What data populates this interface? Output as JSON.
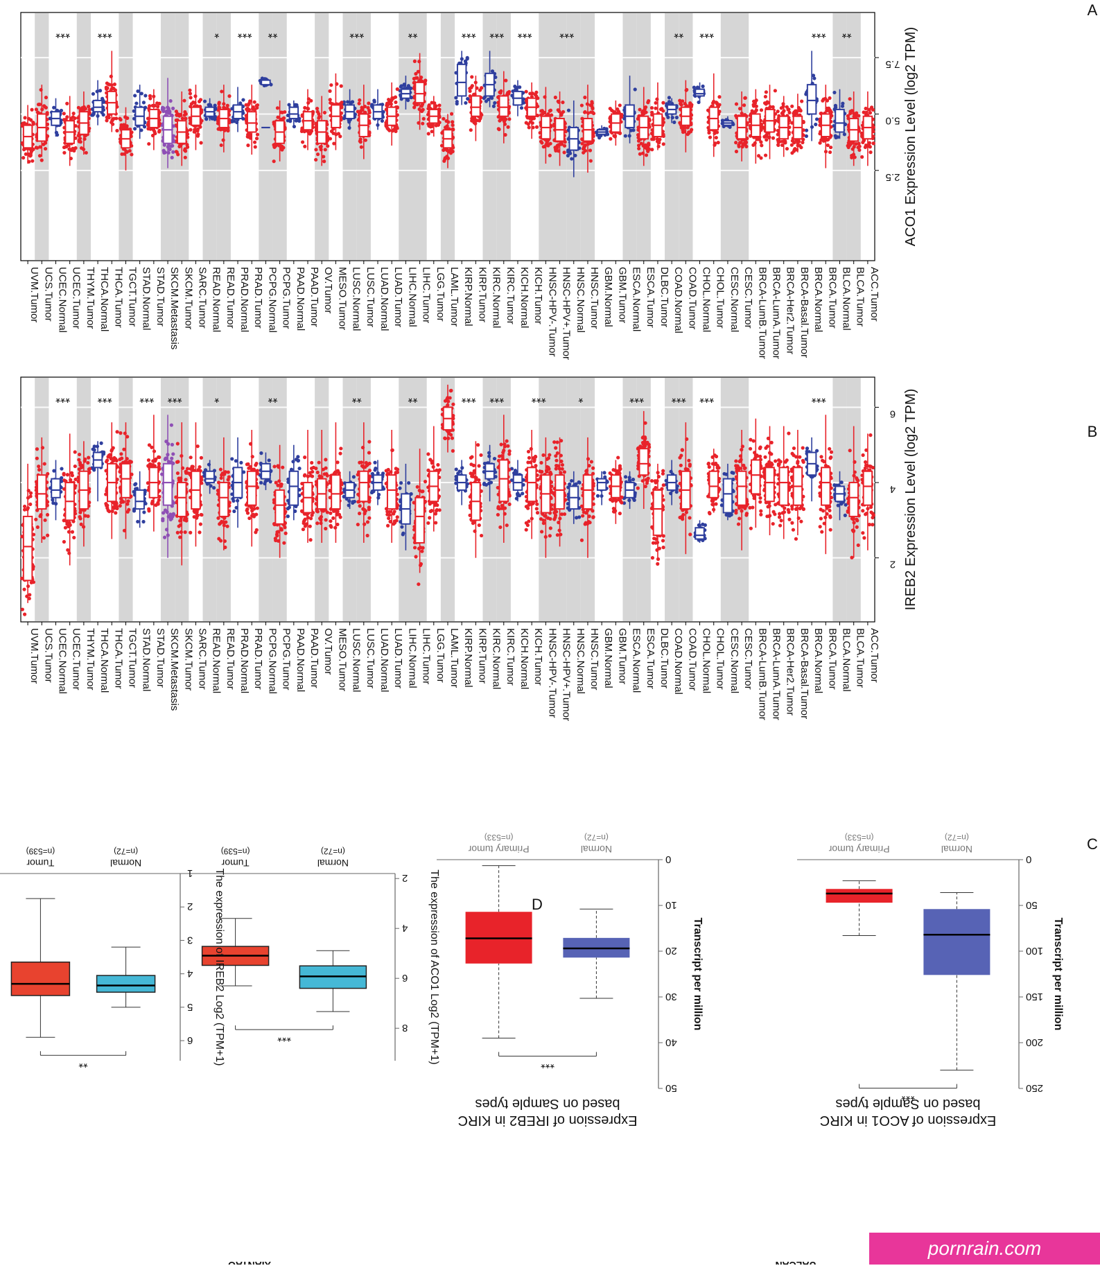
{
  "panel_labels": {
    "A": "A",
    "B": "B",
    "C": "C",
    "D": "D"
  },
  "sections": {
    "ualcan": "UALCAN",
    "xiantao": "XIANTAO"
  },
  "watermark": "pornrain.com",
  "colors": {
    "tumor": "#e8232a",
    "normal": "#2f3f9e",
    "metastasis": "#8e4fb5",
    "stripe": "#d6d6d6",
    "ualcan_normal": "#5763b5",
    "xiantao_normal": "#45b8d6",
    "xiantao_tumor": "#e8432f"
  },
  "chart_data": [
    {
      "panel": "A",
      "type": "box",
      "ylabel": "ACO1 Expression Level (log2 TPM)",
      "yticks": [
        "2.5",
        "5.0",
        "7.5"
      ],
      "ylim": [
        -1.5,
        9.5
      ],
      "categories": [
        "ACC.Tumor",
        "BLCA.Tumor",
        "BLCA.Normal",
        "BRCA.Tumor",
        "BRCA.Normal",
        "BRCA-Basal.Tumor",
        "BRCA-Her2.Tumor",
        "BRCA-LumA.Tumor",
        "BRCA-LumB.Tumor",
        "CESC.Tumor",
        "CESC.Normal",
        "CHOL.Tumor",
        "CHOL.Normal",
        "COAD.Tumor",
        "COAD.Normal",
        "DLBC.Tumor",
        "ESCA.Tumor",
        "ESCA.Normal",
        "GBM.Tumor",
        "GBM.Normal",
        "HNSC.Tumor",
        "HNSC.Normal",
        "HNSC-HPV+.Tumor",
        "HNSC-HPV-.Tumor",
        "KICH.Tumor",
        "KICH.Normal",
        "KIRC.Tumor",
        "KIRC.Normal",
        "KIRP.Tumor",
        "KIRP.Normal",
        "LAML.Tumor",
        "LGG.Tumor",
        "LIHC.Tumor",
        "LIHC.Normal",
        "LUAD.Tumor",
        "LUAD.Normal",
        "LUSC.Tumor",
        "LUSC.Normal",
        "MESO.Tumor",
        "OV.Tumor",
        "PAAD.Tumor",
        "PAAD.Normal",
        "PCPG.Tumor",
        "PCPG.Normal",
        "PRAD.Tumor",
        "PRAD.Normal",
        "READ.Tumor",
        "READ.Normal",
        "SARC.Tumor",
        "SKCM.Tumor",
        "SKCM.Metastasis",
        "STAD.Tumor",
        "STAD.Normal",
        "TGCT.Tumor",
        "THCA.Tumor",
        "THCA.Normal",
        "THYM.Tumor",
        "UCEC.Tumor",
        "UCEC.Normal",
        "UCS.Tumor",
        "UVM.Tumor"
      ],
      "median": [
        4.4,
        4.3,
        4.6,
        4.5,
        5.6,
        4.4,
        4.4,
        4.7,
        4.5,
        4.4,
        4.6,
        4.8,
        5.9,
        4.9,
        5.2,
        4.5,
        4.4,
        4.9,
        4.6,
        4.2,
        4.3,
        3.9,
        4.3,
        4.4,
        5.3,
        5.7,
        5.3,
        6.3,
        5.3,
        6.4,
        3.9,
        4.9,
        5.9,
        5.9,
        4.9,
        5.1,
        4.5,
        5.1,
        4.9,
        4.2,
        4.7,
        5.0,
        4.2,
        4.4,
        4.6,
        5.1,
        4.8,
        5.1,
        4.9,
        4.2,
        4.3,
        4.8,
        4.9,
        3.9,
        5.5,
        5.3,
        4.6,
        4.2,
        4.8,
        4.4,
        4.0
      ],
      "q1": [
        3.9,
        3.8,
        4.2,
        4.0,
        5.0,
        3.9,
        3.9,
        4.2,
        4.0,
        3.9,
        4.5,
        4.3,
        5.8,
        4.5,
        5.0,
        4.0,
        3.9,
        4.4,
        4.2,
        4.1,
        3.8,
        3.4,
        3.8,
        3.9,
        4.9,
        5.4,
        4.9,
        5.8,
        4.9,
        5.8,
        3.5,
        4.6,
        5.5,
        5.7,
        4.5,
        4.8,
        4.0,
        4.8,
        4.4,
        3.7,
        4.3,
        4.8,
        3.7,
        6.3,
        4.2,
        4.8,
        4.4,
        4.9,
        4.5,
        3.7,
        3.7,
        4.4,
        4.5,
        3.5,
        5.0,
        5.1,
        4.1,
        3.7,
        4.5,
        3.8,
        3.5
      ],
      "q3": [
        4.9,
        4.8,
        5.2,
        5.0,
        6.3,
        4.9,
        4.9,
        5.2,
        5.0,
        4.9,
        4.7,
        5.3,
        6.1,
        5.3,
        5.4,
        5.0,
        4.9,
        5.4,
        5.0,
        4.3,
        4.8,
        4.4,
        4.8,
        4.9,
        5.7,
        6.0,
        5.8,
        6.8,
        5.8,
        7.2,
        4.3,
        5.2,
        6.4,
        6.1,
        5.3,
        5.4,
        5.0,
        5.4,
        5.4,
        4.7,
        5.1,
        5.3,
        4.7,
        6.5,
        5.1,
        5.4,
        5.2,
        5.3,
        5.3,
        4.7,
        4.9,
        5.2,
        5.3,
        4.3,
        6.0,
        5.6,
        5.1,
        4.7,
        5.1,
        5.0,
        4.5
      ],
      "lower": [
        2.7,
        2.7,
        3.9,
        2.6,
        3.8,
        3.3,
        3.1,
        3.0,
        2.8,
        2.9,
        4.4,
        3.1,
        5.5,
        3.3,
        4.6,
        3.4,
        2.7,
        3.7,
        3.6,
        4.0,
        2.4,
        2.2,
        2.7,
        2.8,
        3.9,
        4.9,
        3.7,
        5.3,
        3.8,
        5.4,
        2.6,
        4.0,
        4.3,
        5.2,
        3.6,
        4.3,
        3.0,
        4.3,
        3.4,
        2.7,
        3.4,
        4.5,
        2.9,
        6.2,
        3.2,
        4.2,
        3.3,
        4.7,
        3.4,
        2.7,
        2.6,
        3.4,
        3.9,
        2.5,
        4.2,
        4.5,
        3.2,
        2.7,
        4.0,
        3.1,
        2.8
      ],
      "upper": [
        6.0,
        6.0,
        6.1,
        6.3,
        7.8,
        5.9,
        5.8,
        6.3,
        6.1,
        6.0,
        4.9,
        6.8,
        6.4,
        6.5,
        5.7,
        6.4,
        6.2,
        6.7,
        5.6,
        4.5,
        6.3,
        5.6,
        6.0,
        6.2,
        6.4,
        6.5,
        6.9,
        7.8,
        6.7,
        7.8,
        5.0,
        5.8,
        7.7,
        6.7,
        6.4,
        6.1,
        6.3,
        6.1,
        6.8,
        5.8,
        6.1,
        5.6,
        5.6,
        6.6,
        6.3,
        6.2,
        6.3,
        5.7,
        6.3,
        6.0,
        6.6,
        6.1,
        6.3,
        5.3,
        7.8,
        6.5,
        6.0,
        5.8,
        5.7,
        6.3,
        5.4
      ],
      "significance": [
        {
          "pair": [
            1,
            2
          ],
          "label": "**"
        },
        {
          "pair": [
            3,
            4
          ],
          "label": "***"
        },
        {
          "pair": [
            11,
            12
          ],
          "label": "***"
        },
        {
          "pair": [
            13,
            14
          ],
          "label": "**"
        },
        {
          "pair": [
            20,
            23
          ],
          "label": "***"
        },
        {
          "pair": [
            24,
            25
          ],
          "label": "***"
        },
        {
          "pair": [
            26,
            27
          ],
          "label": "***"
        },
        {
          "pair": [
            28,
            29
          ],
          "label": "***"
        },
        {
          "pair": [
            32,
            33
          ],
          "label": "**"
        },
        {
          "pair": [
            36,
            37
          ],
          "label": "***"
        },
        {
          "pair": [
            42,
            43
          ],
          "label": "**"
        },
        {
          "pair": [
            44,
            45
          ],
          "label": "***"
        },
        {
          "pair": [
            46,
            47
          ],
          "label": "*"
        },
        {
          "pair": [
            54,
            55
          ],
          "label": "***"
        },
        {
          "pair": [
            57,
            58
          ],
          "label": "***"
        }
      ]
    },
    {
      "panel": "B",
      "type": "box",
      "ylabel": "IREB2 Expression Level (log2 TPM)",
      "yticks": [
        "2",
        "4",
        "6"
      ],
      "ylim": [
        0.3,
        6.8
      ],
      "categories": [
        "ACC.Tumor",
        "BLCA.Tumor",
        "BLCA.Normal",
        "BRCA.Tumor",
        "BRCA.Normal",
        "BRCA-Basal.Tumor",
        "BRCA-Her2.Tumor",
        "BRCA-LumA.Tumor",
        "BRCA-LumB.Tumor",
        "CESC.Tumor",
        "CESC.Normal",
        "CHOL.Tumor",
        "CHOL.Normal",
        "COAD.Tumor",
        "COAD.Normal",
        "DLBC.Tumor",
        "ESCA.Tumor",
        "ESCA.Normal",
        "GBM.Tumor",
        "GBM.Normal",
        "HNSC.Tumor",
        "HNSC.Normal",
        "HNSC-HPV+.Tumor",
        "HNSC-HPV-.Tumor",
        "KICH.Tumor",
        "KICH.Normal",
        "KIRC.Tumor",
        "KIRC.Normal",
        "KIRP.Tumor",
        "KIRP.Normal",
        "LAML.Tumor",
        "LGG.Tumor",
        "LIHC.Tumor",
        "LIHC.Normal",
        "LUAD.Tumor",
        "LUAD.Normal",
        "LUSC.Tumor",
        "LUSC.Normal",
        "MESO.Tumor",
        "OV.Tumor",
        "PAAD.Tumor",
        "PAAD.Normal",
        "PCPG.Tumor",
        "PCPG.Normal",
        "PRAD.Tumor",
        "PRAD.Normal",
        "READ.Tumor",
        "READ.Normal",
        "SARC.Tumor",
        "SKCM.Tumor",
        "SKCM.Metastasis",
        "STAD.Tumor",
        "STAD.Normal",
        "TGCT.Tumor",
        "THCA.Tumor",
        "THCA.Normal",
        "THYM.Tumor",
        "UCEC.Tumor",
        "UCEC.Normal",
        "UCS.Tumor",
        "UVM.Tumor"
      ],
      "median": [
        3.9,
        3.6,
        3.7,
        4.0,
        4.5,
        3.9,
        4.0,
        4.0,
        4.2,
        3.9,
        3.7,
        3.9,
        2.6,
        3.8,
        4.0,
        3.3,
        4.5,
        3.8,
        3.9,
        4.0,
        3.8,
        3.6,
        3.8,
        3.7,
        4.0,
        4.0,
        4.1,
        4.3,
        3.5,
        4.0,
        5.7,
        3.9,
        3.1,
        3.3,
        3.8,
        4.0,
        4.0,
        3.8,
        3.7,
        3.7,
        3.6,
        3.9,
        3.4,
        4.3,
        3.9,
        4.0,
        3.6,
        4.1,
        3.8,
        3.6,
        4.0,
        4.0,
        3.5,
        4.1,
        4.0,
        4.6,
        3.8,
        3.5,
        3.8,
        3.7,
        2.3
      ],
      "q1": [
        3.4,
        3.1,
        3.5,
        3.4,
        4.2,
        3.4,
        3.4,
        3.5,
        3.7,
        3.4,
        3.2,
        3.6,
        2.5,
        3.3,
        3.8,
        2.6,
        4.2,
        3.6,
        3.6,
        3.8,
        3.3,
        3.3,
        3.3,
        3.2,
        3.5,
        3.8,
        3.5,
        4.1,
        3.0,
        3.8,
        5.4,
        3.5,
        2.4,
        2.9,
        3.3,
        3.8,
        3.5,
        3.6,
        3.3,
        3.3,
        3.2,
        3.4,
        2.9,
        4.1,
        3.4,
        3.6,
        3.1,
        4.0,
        3.3,
        3.1,
        3.4,
        3.6,
        3.3,
        3.6,
        3.5,
        4.4,
        3.3,
        3.0,
        3.6,
        3.3,
        1.4
      ],
      "q3": [
        4.3,
        4.0,
        3.9,
        4.4,
        4.8,
        4.4,
        4.4,
        4.4,
        4.6,
        4.3,
        4.1,
        4.3,
        2.8,
        4.3,
        4.2,
        3.8,
        4.9,
        4.0,
        4.2,
        4.1,
        4.2,
        3.9,
        4.2,
        4.2,
        4.4,
        4.2,
        4.6,
        4.5,
        4.0,
        4.2,
        6.0,
        4.3,
        3.6,
        3.7,
        4.2,
        4.2,
        4.3,
        4.0,
        4.2,
        4.1,
        4.0,
        4.3,
        3.8,
        4.5,
        4.3,
        4.4,
        4.0,
        4.3,
        4.3,
        4.0,
        4.5,
        4.4,
        3.8,
        4.5,
        4.5,
        4.8,
        4.3,
        4.0,
        4.1,
        4.2,
        3.1
      ],
      "lower": [
        2.2,
        2.0,
        3.0,
        2.1,
        3.5,
        2.6,
        2.5,
        2.6,
        2.8,
        2.2,
        3.0,
        3.2,
        2.4,
        2.1,
        3.4,
        2.0,
        3.3,
        3.3,
        2.9,
        3.4,
        2.0,
        2.9,
        2.3,
        2.0,
        2.5,
        3.5,
        2.4,
        3.5,
        2.0,
        3.4,
        4.8,
        2.7,
        1.6,
        2.2,
        2.4,
        3.4,
        2.4,
        3.3,
        2.4,
        2.4,
        2.4,
        3.0,
        2.0,
        3.8,
        2.3,
        2.8,
        2.2,
        3.7,
        2.3,
        1.8,
        2.0,
        2.7,
        2.8,
        2.5,
        2.5,
        3.5,
        2.3,
        1.8,
        3.0,
        2.4,
        0.8
      ],
      "upper": [
        5.3,
        5.5,
        4.3,
        5.8,
        5.2,
        5.4,
        5.5,
        5.5,
        5.7,
        5.4,
        4.5,
        4.9,
        3.0,
        5.6,
        4.6,
        4.5,
        5.9,
        4.3,
        4.6,
        4.3,
        5.2,
        4.3,
        5.2,
        5.2,
        5.4,
        4.6,
        5.8,
        5.0,
        5.1,
        4.6,
        6.6,
        5.5,
        4.9,
        4.5,
        5.4,
        4.6,
        5.6,
        4.3,
        5.6,
        5.4,
        5.4,
        5.0,
        5.0,
        4.8,
        5.4,
        5.2,
        5.2,
        4.6,
        5.6,
        5.6,
        5.8,
        5.8,
        4.3,
        5.6,
        5.6,
        5.1,
        5.1,
        5.3,
        4.6,
        5.2,
        4.5
      ],
      "significance": [
        {
          "pair": [
            3,
            4
          ],
          "label": "***"
        },
        {
          "pair": [
            11,
            12
          ],
          "label": "***"
        },
        {
          "pair": [
            13,
            14
          ],
          "label": "***"
        },
        {
          "pair": [
            16,
            17
          ],
          "label": "***"
        },
        {
          "pair": [
            20,
            21
          ],
          "label": "*"
        },
        {
          "pair": [
            23,
            24
          ],
          "label": "***"
        },
        {
          "pair": [
            26,
            27
          ],
          "label": "***"
        },
        {
          "pair": [
            28,
            29
          ],
          "label": "***"
        },
        {
          "pair": [
            32,
            33
          ],
          "label": "**"
        },
        {
          "pair": [
            36,
            37
          ],
          "label": "**"
        },
        {
          "pair": [
            42,
            43
          ],
          "label": "**"
        },
        {
          "pair": [
            46,
            47
          ],
          "label": "*"
        },
        {
          "pair": [
            49,
            50
          ],
          "label": "***"
        },
        {
          "pair": [
            51,
            52
          ],
          "label": "***"
        },
        {
          "pair": [
            54,
            55
          ],
          "label": "***"
        },
        {
          "pair": [
            57,
            58
          ],
          "label": "***"
        }
      ]
    },
    {
      "panel": "C-ACO1",
      "type": "box",
      "title": "Expression of ACO1 in KIRC based on Sample types",
      "ylabel": "Transcript per million",
      "yticks": [
        "0",
        "50",
        "100",
        "150",
        "200",
        "250"
      ],
      "ylim": [
        0,
        250
      ],
      "categories": [
        "Normal",
        "Primary tumor"
      ],
      "category_notes": [
        "(n=72)",
        "(n=533)"
      ],
      "median": [
        82,
        37
      ],
      "q1": [
        54,
        32
      ],
      "q3": [
        126,
        47
      ],
      "lower": [
        36,
        23
      ],
      "upper": [
        230,
        83
      ],
      "significance_label": "***"
    },
    {
      "panel": "C-IREB2",
      "type": "box",
      "title": "Expression of IREB2 in KIRC based on Sample types",
      "ylabel": "Transcript per million",
      "yticks": [
        "0",
        "10",
        "20",
        "30",
        "40",
        "50"
      ],
      "ylim": [
        0,
        50
      ],
      "categories": [
        "Normal",
        "Primary tumor"
      ],
      "category_notes": [
        "(n=72)",
        "(n=533)"
      ],
      "median": [
        19.4,
        17.2
      ],
      "q1": [
        17.1,
        11.4
      ],
      "q3": [
        21.4,
        22.7
      ],
      "lower": [
        10.8,
        1.3
      ],
      "upper": [
        30.3,
        39.0
      ],
      "significance_label": "***"
    },
    {
      "panel": "D-ACO1",
      "type": "box",
      "ylabel": "The expression of ACO1 Log2 (TPM+1)",
      "yticks": [
        "2",
        "4",
        "6",
        "8"
      ],
      "ylim": [
        1.8,
        9.3
      ],
      "categories": [
        "Normal",
        "Tumor"
      ],
      "category_notes": [
        "(n=72)",
        "(n=539)"
      ],
      "median": [
        5.92,
        5.09
      ],
      "q1": [
        5.5,
        4.72
      ],
      "q3": [
        6.4,
        5.48
      ],
      "lower": [
        4.89,
        3.6
      ],
      "upper": [
        7.33,
        6.3
      ],
      "significance_label": "***"
    },
    {
      "panel": "D-IREB2",
      "type": "box",
      "ylabel": "The expression of IREB2 Log2 (TPM+1)",
      "yticks": [
        "1",
        "2",
        "3",
        "4",
        "5",
        "6"
      ],
      "ylim": [
        1.0,
        6.6
      ],
      "categories": [
        "Normal",
        "Tumor"
      ],
      "category_notes": [
        "(n=72)",
        "(n=539)"
      ],
      "median": [
        4.35,
        4.3
      ],
      "q1": [
        4.05,
        3.65
      ],
      "q3": [
        4.55,
        4.65
      ],
      "lower": [
        3.2,
        1.75
      ],
      "upper": [
        5.0,
        5.9
      ],
      "significance_label": "**"
    }
  ]
}
